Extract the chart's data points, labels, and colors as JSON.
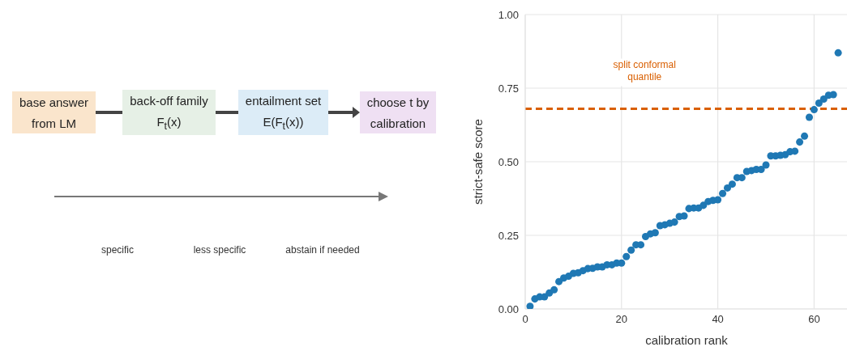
{
  "chart_data": [
    {
      "type": "other",
      "annotations": [
        "base answer\nfrom LM",
        "back-off family\nF$_{t}$(x)",
        "entailment set\nE(F$_{t}$(x))",
        "choose t by\ncalibration",
        "specific",
        "less specific",
        "abstain if needed"
      ],
      "colors": [
        "#fae5cc",
        "#e6f0e6",
        "#dcecf7",
        "#efe0f3"
      ]
    },
    {
      "type": "scatter",
      "xlabel": "calibration rank",
      "ylabel": "strict-safe score",
      "xlim": [
        0,
        67
      ],
      "xticks": [
        0,
        20,
        40,
        60
      ],
      "ylim": [
        0,
        1
      ],
      "yticks": [
        {
          "value": 0,
          "label": "0.00"
        },
        {
          "value": 0.25,
          "label": "0.25"
        },
        {
          "value": 0.5,
          "label": "0.50"
        },
        {
          "value": 0.75,
          "label": "0.75"
        },
        {
          "value": 1,
          "label": "1.00"
        }
      ],
      "grid": true,
      "marker": "circle",
      "x": [
        1,
        2,
        3,
        4,
        5,
        6,
        7,
        8,
        9,
        10,
        11,
        12,
        13,
        14,
        15,
        16,
        17,
        18,
        19,
        20,
        21,
        22,
        23,
        24,
        25,
        26,
        27,
        28,
        29,
        30,
        31,
        32,
        33,
        34,
        35,
        36,
        37,
        38,
        39,
        40,
        41,
        42,
        43,
        44,
        45,
        46,
        47,
        48,
        49,
        50,
        51,
        52,
        53,
        54,
        55,
        56,
        57,
        58,
        59,
        60,
        61,
        62,
        63,
        64,
        65
      ],
      "series": [
        {
          "color": "#1f78b4",
          "values": [
            0.009,
            0.034,
            0.041,
            0.041,
            0.054,
            0.065,
            0.093,
            0.105,
            0.111,
            0.121,
            0.123,
            0.13,
            0.137,
            0.138,
            0.143,
            0.143,
            0.15,
            0.15,
            0.156,
            0.156,
            0.178,
            0.2,
            0.218,
            0.218,
            0.246,
            0.255,
            0.259,
            0.283,
            0.286,
            0.291,
            0.295,
            0.314,
            0.316,
            0.341,
            0.343,
            0.343,
            0.352,
            0.365,
            0.369,
            0.371,
            0.392,
            0.411,
            0.424,
            0.446,
            0.446,
            0.467,
            0.47,
            0.474,
            0.474,
            0.489,
            0.52,
            0.52,
            0.522,
            0.524,
            0.534,
            0.536,
            0.567,
            0.587,
            0.651,
            0.677,
            0.699,
            0.713,
            0.726,
            0.728,
            0.87
          ]
        }
      ],
      "ref_lines": [
        {
          "axis": "y",
          "value": 0.68,
          "label": "split conformal\nquantile",
          "color": "#d95f02",
          "line_style": "dashed"
        }
      ]
    }
  ]
}
